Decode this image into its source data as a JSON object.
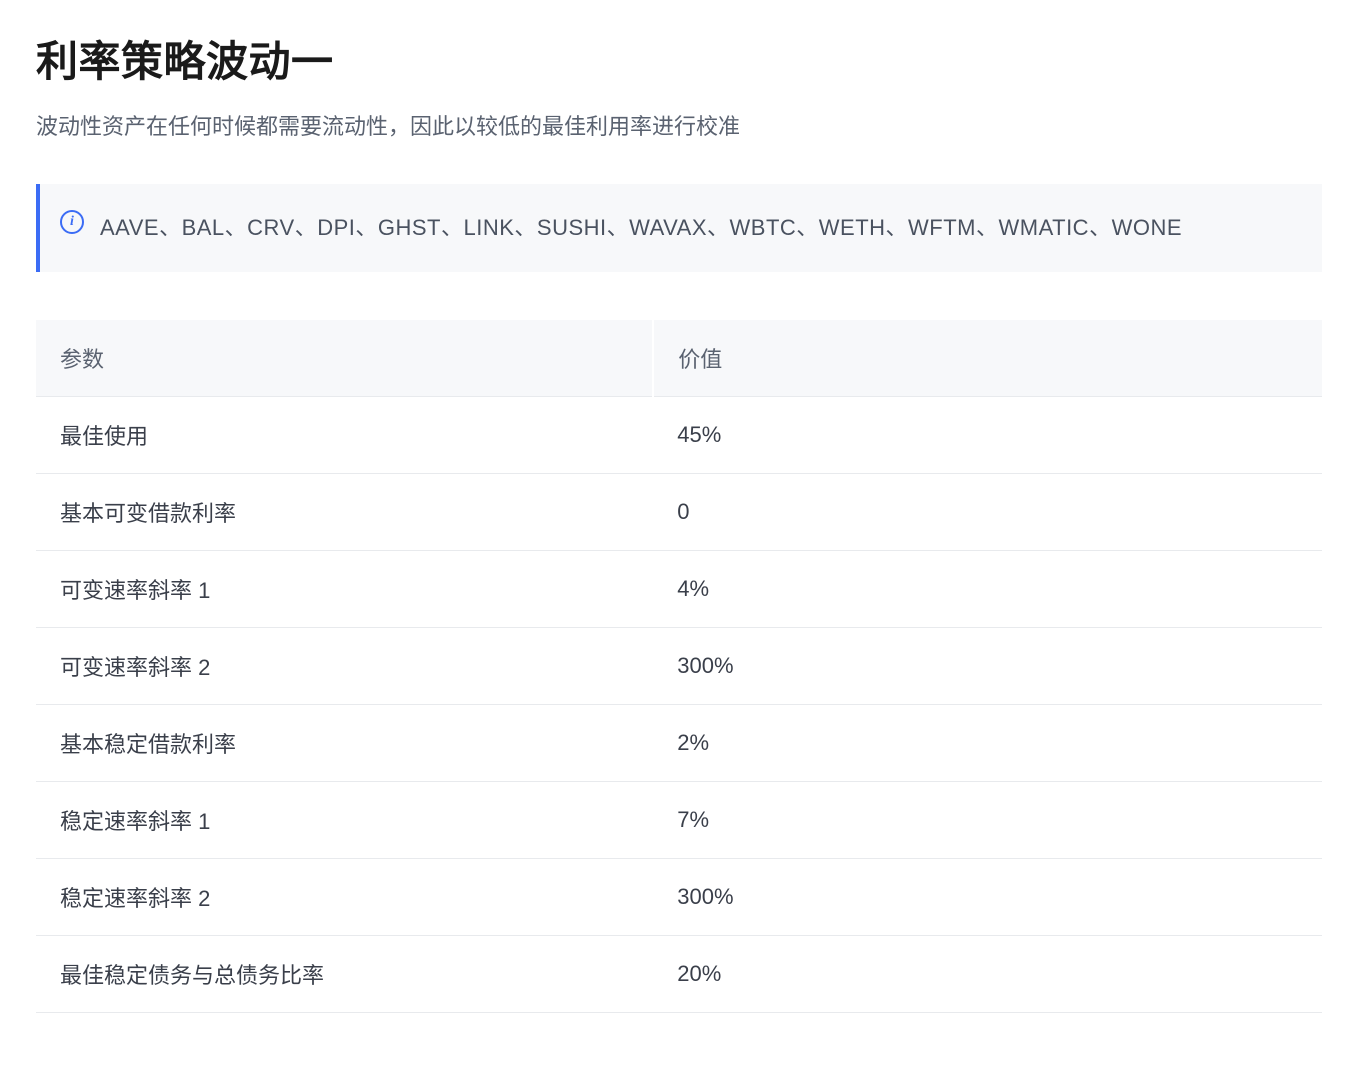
{
  "title": "利率策略波动一",
  "description": "波动性资产在任何时候都需要流动性，因此以较低的最佳利用率进行校准",
  "info_box": {
    "text": "AAVE、BAL、CRV、DPI、GHST、LINK、SUSHI、WAVAX、WBTC、WETH、WFTM、WMATIC、WONE"
  },
  "table": {
    "columns": [
      "参数",
      "价值"
    ],
    "rows": [
      {
        "param": "最佳使用",
        "value": "45%"
      },
      {
        "param": "基本可变借款利率",
        "value": "0"
      },
      {
        "param": "可变速率斜率 1",
        "value": "4%"
      },
      {
        "param": "可变速率斜率 2",
        "value": "300%"
      },
      {
        "param": "基本稳定借款利率",
        "value": "2%"
      },
      {
        "param": "稳定速率斜率 1",
        "value": "7%"
      },
      {
        "param": "稳定速率斜率 2",
        "value": "300%"
      },
      {
        "param": "最佳稳定债务与总债务比率",
        "value": "20%"
      }
    ]
  },
  "colors": {
    "background": "#ffffff",
    "title_text": "#1a1a1a",
    "description_text": "#5a6270",
    "info_bg": "#f7f8fa",
    "info_border": "#3b6cf5",
    "info_text": "#4a5260",
    "table_header_bg": "#f7f8fa",
    "table_header_text": "#5a6270",
    "table_cell_text": "#3a3f4a",
    "table_border": "#e8eaed"
  }
}
